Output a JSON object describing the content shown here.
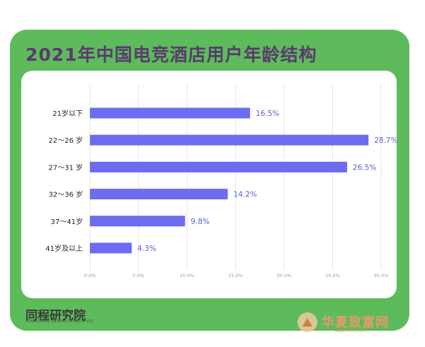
{
  "header": {
    "title": "2021年中国电竞酒店用户年龄结构"
  },
  "footer": {
    "brand": "同程研究院",
    "brand_sub": "TONGCHENG RESEARCH INSTITUTE"
  },
  "watermark": {
    "text": "华夏致富网",
    "url": "www.cnlfx.com"
  },
  "colors": {
    "card": "#5dbb5c",
    "title": "#5a3a6e",
    "bar": "#6b6cf0",
    "value_label": "#5a5fd6",
    "category_label": "#222222",
    "grid": "#e6e6ea",
    "tick_label": "#9a9aa0"
  },
  "chart_data": {
    "type": "bar",
    "orientation": "horizontal",
    "categories": [
      "21岁以下",
      "22～26 岁",
      "27～31 岁",
      "32～36 岁",
      "37～41岁",
      "41岁及以上"
    ],
    "values": [
      16.5,
      28.7,
      26.5,
      14.2,
      9.8,
      4.3
    ],
    "value_labels": [
      "16.5%",
      "28.7%",
      "26.5%",
      "14.2%",
      "9.8%",
      "4.3%"
    ],
    "xlim": [
      0,
      30
    ],
    "xticks": [
      "0.0%",
      "5.0%",
      "10.0%",
      "15.0%",
      "20.0%",
      "25.0%",
      "30.0%"
    ],
    "grid": true
  }
}
